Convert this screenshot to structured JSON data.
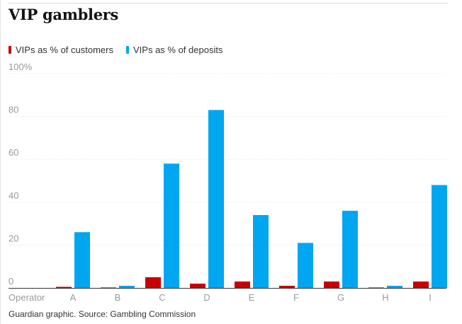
{
  "title": "VIP gamblers",
  "source": "Guardian graphic. Source: Gambling Commission",
  "colors": {
    "customers": "#c70000",
    "deposits": "#00a6f0",
    "grid": "#ececec",
    "axis": "#333333",
    "tick_text": "#999999"
  },
  "chart_data": {
    "type": "bar",
    "title": "VIP gamblers",
    "xlabel": "Operator",
    "ylabel": "",
    "categories": [
      "A",
      "B",
      "C",
      "D",
      "E",
      "F",
      "G",
      "H",
      "I"
    ],
    "series": [
      {
        "name": "VIPs as % of customers",
        "values": [
          0.5,
          0.2,
          5,
          2,
          3,
          1,
          3,
          0.2,
          3
        ]
      },
      {
        "name": "VIPs as % of deposits",
        "values": [
          26,
          1,
          58,
          83,
          34,
          21,
          36,
          1,
          48
        ]
      }
    ],
    "ylim": [
      0,
      100
    ],
    "yticks": [
      "0",
      "20",
      "40",
      "60",
      "80",
      "100%"
    ],
    "grid": true,
    "legend": "top-left"
  }
}
